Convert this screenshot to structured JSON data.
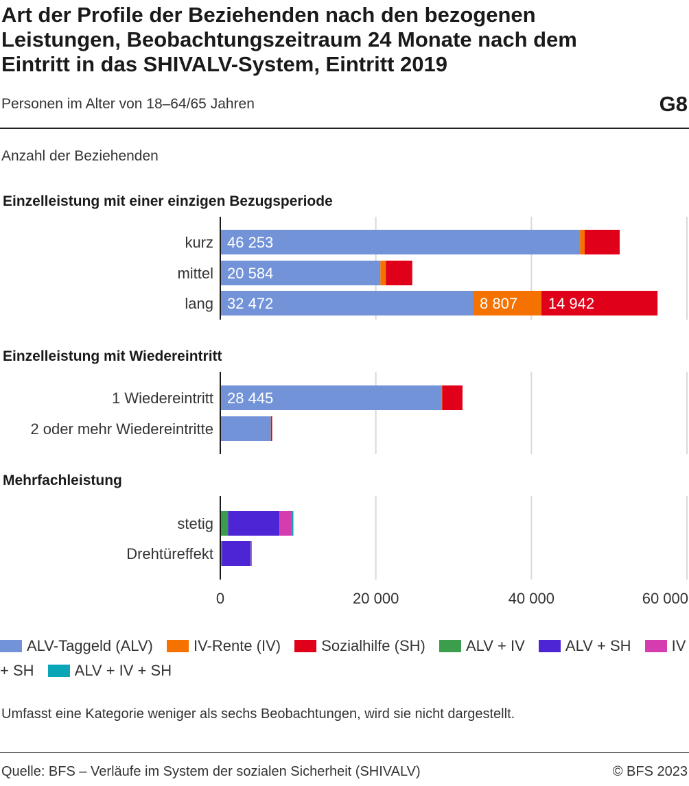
{
  "header": {
    "title": "Art der Profile der Beziehenden nach den bezogenen Leistungen, Beobachtungszeitraum 24 Monate nach dem Eintritt in das SHIVALV-System, Eintritt 2019",
    "subtitle": "Personen im Alter von 18–64/65 Jahren",
    "code": "G8"
  },
  "unit_label": "Anzahl der Beziehenden",
  "footer": {
    "note": "Umfasst eine Kategorie weniger als sechs Beobachtungen, wird sie nicht dargestellt.",
    "source": "Quelle: BFS – Verläufe im System der sozialen Sicherheit (SHIVALV)",
    "copyright": "© BFS 2023"
  },
  "chart_data": {
    "type": "bar",
    "orientation": "horizontal",
    "stacked": true,
    "xlim": [
      0,
      60000
    ],
    "xticks": [
      0,
      20000,
      40000,
      60000
    ],
    "xtick_labels": [
      "0",
      "20 000",
      "40 000",
      "60 000"
    ],
    "grid": true,
    "legend_position": "bottom",
    "series": [
      {
        "name": "ALV-Taggeld (ALV)",
        "color": "#7393d9"
      },
      {
        "name": "IV-Rente (IV)",
        "color": "#f57200"
      },
      {
        "name": "Sozialhilfe (SH)",
        "color": "#e0001a"
      },
      {
        "name": "ALV + IV",
        "color": "#3a9e4c"
      },
      {
        "name": "ALV + SH",
        "color": "#4e25d4"
      },
      {
        "name": "IV + SH",
        "color": "#d43cb0"
      },
      {
        "name": "ALV + IV + SH",
        "color": "#0ba5b8"
      }
    ],
    "groups": [
      {
        "title": "Einzelleistung mit einer einzigen Bezugsperiode",
        "categories": [
          {
            "label": "kurz",
            "values": [
              46253,
              600,
              4500,
              0,
              0,
              0,
              0
            ],
            "value_labels": [
              "46 253",
              "",
              "",
              "",
              "",
              "",
              ""
            ]
          },
          {
            "label": "mittel",
            "values": [
              20584,
              700,
              3400,
              0,
              0,
              0,
              0
            ],
            "value_labels": [
              "20 584",
              "",
              "",
              "",
              "",
              "",
              ""
            ]
          },
          {
            "label": "lang",
            "values": [
              32472,
              8807,
              14942,
              0,
              0,
              0,
              0
            ],
            "value_labels": [
              "32 472",
              "8 807",
              "14 942",
              "",
              "",
              "",
              ""
            ]
          }
        ]
      },
      {
        "title": "Einzelleistung mit Wiedereintritt",
        "categories": [
          {
            "label": "1 Wiedereintritt",
            "values": [
              28445,
              100,
              2600,
              0,
              0,
              0,
              0
            ],
            "value_labels": [
              "28 445",
              "",
              "",
              "",
              "",
              "",
              ""
            ]
          },
          {
            "label": "2 oder mehr Wiedereintritte",
            "values": [
              6500,
              20,
              150,
              0,
              0,
              0,
              0
            ],
            "value_labels": [
              "",
              "",
              "",
              "",
              "",
              "",
              ""
            ]
          }
        ]
      },
      {
        "title": "Mehrfachleistung",
        "categories": [
          {
            "label": "stetig",
            "values": [
              0,
              0,
              0,
              1000,
              6600,
              1600,
              200
            ],
            "value_labels": [
              "",
              "",
              "",
              "",
              "",
              "",
              ""
            ]
          },
          {
            "label": "Drehtüreffekt",
            "values": [
              0,
              0,
              0,
              200,
              3700,
              50,
              100
            ],
            "value_labels": [
              "",
              "",
              "",
              "",
              "",
              "",
              ""
            ]
          }
        ]
      }
    ]
  }
}
